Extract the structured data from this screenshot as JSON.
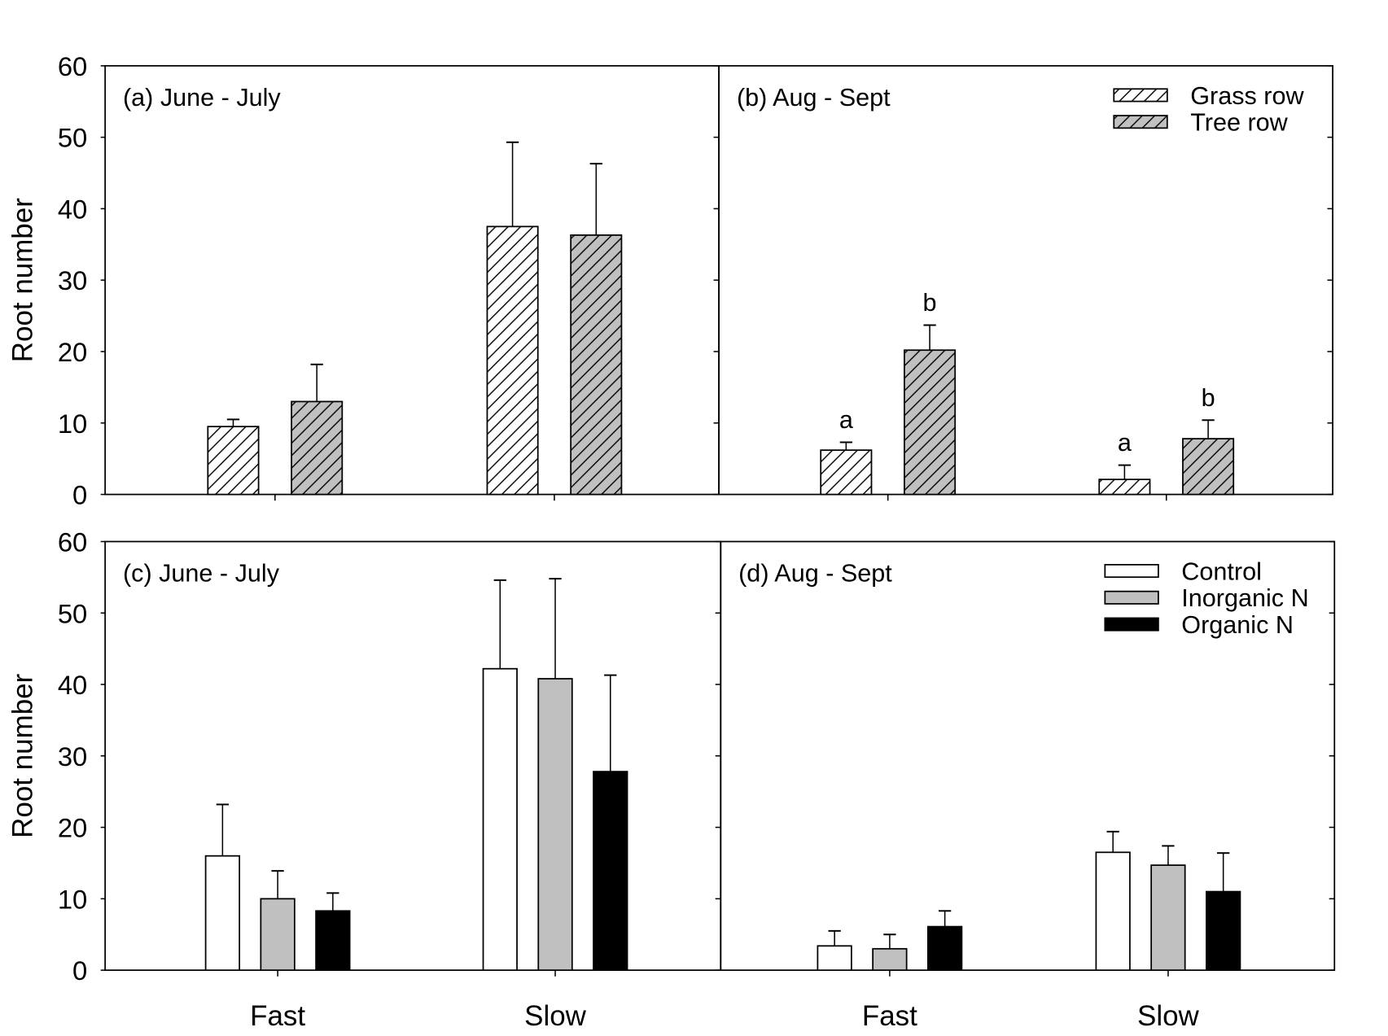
{
  "chart_data": [
    {
      "panel": "(a) June - July",
      "type": "bar",
      "categories": [
        "Fast",
        "Slow"
      ],
      "ylabel": "Root number",
      "ylim": [
        0,
        60
      ],
      "yticks": [
        "0",
        "10",
        "20",
        "30",
        "40",
        "50",
        "60"
      ],
      "series": [
        {
          "name": "Grass row",
          "fill": "hatch-white",
          "values": [
            9.5,
            37.5
          ],
          "error_upper": [
            10.5,
            49.3
          ]
        },
        {
          "name": "Tree row",
          "fill": "hatch-gray",
          "values": [
            13.0,
            36.3
          ],
          "error_upper": [
            18.2,
            46.3
          ]
        }
      ]
    },
    {
      "panel": "(b) Aug - Sept",
      "type": "bar",
      "categories": [
        "Fast",
        "Slow"
      ],
      "ylim": [
        0,
        60
      ],
      "legend": [
        "Grass row",
        "Tree row"
      ],
      "legend_position": "top-right",
      "series": [
        {
          "name": "Grass row",
          "fill": "hatch-white",
          "values": [
            6.2,
            2.1
          ],
          "error_upper": [
            7.3,
            4.1
          ],
          "letters": [
            "a",
            "a"
          ]
        },
        {
          "name": "Tree row",
          "fill": "hatch-gray",
          "values": [
            20.2,
            7.8
          ],
          "error_upper": [
            23.7,
            10.4
          ],
          "letters": [
            "b",
            "b"
          ]
        }
      ]
    },
    {
      "panel": "(c) June - July",
      "type": "bar",
      "categories": [
        "Fast",
        "Slow"
      ],
      "ylabel": "Root number",
      "ylim": [
        0,
        60
      ],
      "yticks": [
        "0",
        "10",
        "20",
        "30",
        "40",
        "50",
        "60"
      ],
      "series": [
        {
          "name": "Control",
          "color": "#ffffff",
          "values": [
            16.0,
            42.2
          ],
          "error_upper": [
            23.2,
            54.6
          ]
        },
        {
          "name": "Inorganic N",
          "color": "#c0c0c0",
          "values": [
            10.0,
            40.8
          ],
          "error_upper": [
            13.9,
            54.8
          ]
        },
        {
          "name": "Organic N",
          "color": "#000000",
          "values": [
            8.3,
            27.8
          ],
          "error_upper": [
            10.8,
            41.3
          ]
        }
      ]
    },
    {
      "panel": "(d) Aug - Sept",
      "type": "bar",
      "categories": [
        "Fast",
        "Slow"
      ],
      "ylim": [
        0,
        60
      ],
      "legend": [
        "Control",
        "Inorganic N",
        "Organic N"
      ],
      "legend_position": "top-right",
      "series": [
        {
          "name": "Control",
          "color": "#ffffff",
          "values": [
            3.4,
            16.5
          ],
          "error_upper": [
            5.5,
            19.4
          ]
        },
        {
          "name": "Inorganic N",
          "color": "#c0c0c0",
          "values": [
            3.0,
            14.7
          ],
          "error_upper": [
            5.0,
            17.4
          ]
        },
        {
          "name": "Organic N",
          "color": "#000000",
          "values": [
            6.1,
            11.0
          ],
          "error_upper": [
            8.3,
            16.4
          ]
        }
      ]
    }
  ]
}
